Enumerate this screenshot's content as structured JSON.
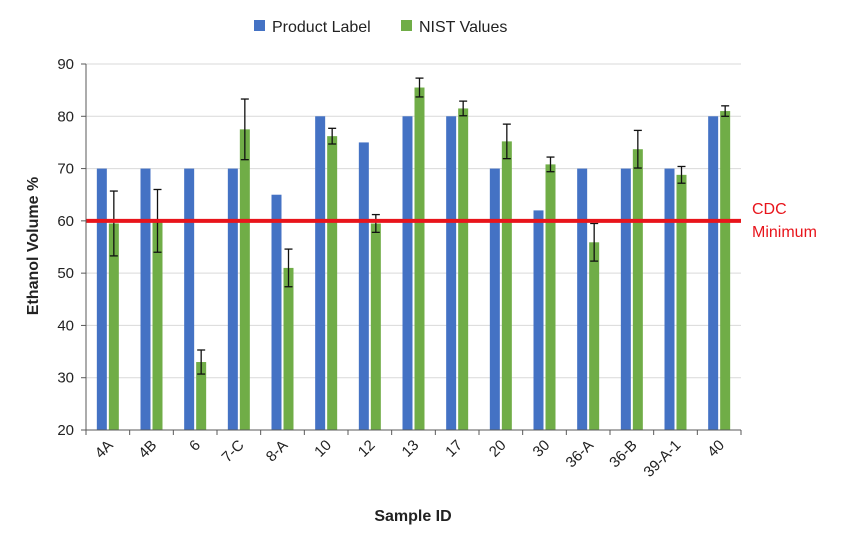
{
  "chart_data": {
    "type": "bar",
    "title": "",
    "xlabel": "Sample ID",
    "ylabel": "Ethanol Volume %",
    "ylim": [
      20,
      90
    ],
    "yticks": [
      20,
      30,
      40,
      50,
      60,
      70,
      80,
      90
    ],
    "grid": "horizontal",
    "legend_position": "top",
    "categories": [
      "4A",
      "4B",
      "6",
      "7-C",
      "8-A",
      "10",
      "12",
      "13",
      "17",
      "20",
      "30",
      "36-A",
      "36-B",
      "39-A-1",
      "40"
    ],
    "series": [
      {
        "name": "Product Label",
        "color": "#4472C4",
        "values": [
          70,
          70,
          70,
          70,
          65,
          80,
          75,
          80,
          80,
          70,
          62,
          70,
          70,
          70,
          80
        ]
      },
      {
        "name": "NIST Values",
        "color": "#70AD47",
        "values": [
          59.5,
          60.0,
          33.0,
          77.5,
          51.0,
          76.2,
          59.5,
          85.5,
          81.5,
          75.2,
          70.8,
          55.9,
          73.7,
          68.8,
          81.0
        ],
        "error": [
          6.2,
          6.0,
          2.3,
          5.8,
          3.6,
          1.5,
          1.7,
          1.8,
          1.4,
          3.3,
          1.4,
          3.6,
          3.6,
          1.6,
          1.0
        ]
      }
    ],
    "reference_line": {
      "value": 60,
      "color": "#E8141B",
      "label_line1": "CDC",
      "label_line2": "Minimum"
    }
  }
}
